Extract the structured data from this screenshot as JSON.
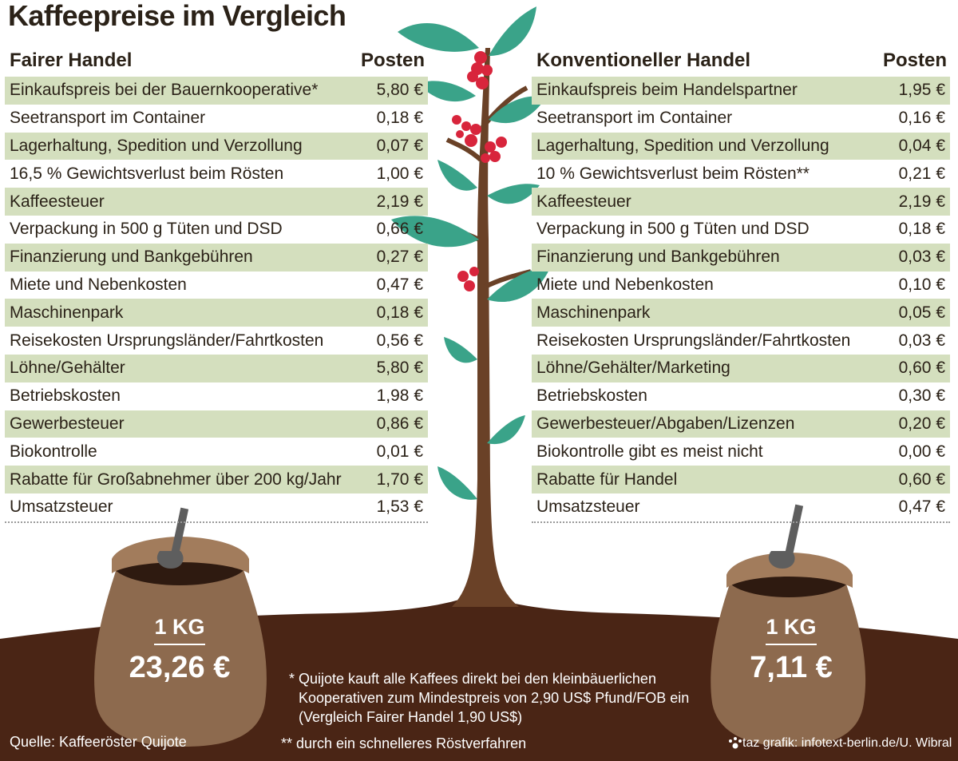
{
  "title": "Kaffeepreise im Vergleich",
  "colors": {
    "row_shade": "#d4dfbe",
    "soil": "#4a2515",
    "sack": "#8d6a4e",
    "leaf": "#3aa389",
    "berry": "#d8253c",
    "text": "#2b2218"
  },
  "chart_data": {
    "type": "table",
    "tables": [
      {
        "header": "Fairer Handel",
        "value_header": "Posten",
        "rows": [
          {
            "label": "Einkaufspreis bei der Bauernkooperative*",
            "value": "5,80 €"
          },
          {
            "label": "Seetransport im Container",
            "value": "0,18 €"
          },
          {
            "label": "Lagerhaltung, Spedition und Verzollung",
            "value": "0,07 €"
          },
          {
            "label": "16,5 % Gewichtsverlust beim Rösten",
            "value": "1,00 €"
          },
          {
            "label": "Kaffeesteuer",
            "value": "2,19 €"
          },
          {
            "label": "Verpackung in 500 g Tüten und DSD",
            "value": "0,66 €"
          },
          {
            "label": "Finanzierung und Bankgebühren",
            "value": "0,27 €"
          },
          {
            "label": "Miete und Nebenkosten",
            "value": "0,47 €"
          },
          {
            "label": "Maschinenpark",
            "value": "0,18 €"
          },
          {
            "label": "Reisekosten Ursprungsländer/Fahrtkosten",
            "value": "0,56 €"
          },
          {
            "label": "Löhne/Gehälter",
            "value": "5,80 €"
          },
          {
            "label": "Betriebskosten",
            "value": "1,98 €"
          },
          {
            "label": "Gewerbesteuer",
            "value": "0,86 €"
          },
          {
            "label": "Biokontrolle",
            "value": "0,01 €"
          },
          {
            "label": "Rabatte für Großabnehmer über 200 kg/Jahr",
            "value": "1,70 €"
          },
          {
            "label": "Umsatzsteuer",
            "value": "1,53 €"
          }
        ],
        "total_unit": "1 KG",
        "total": "23,26 €"
      },
      {
        "header": "Konventioneller Handel",
        "value_header": "Posten",
        "rows": [
          {
            "label": "Einkaufspreis beim Handelspartner",
            "value": "1,95 €"
          },
          {
            "label": "Seetransport im Container",
            "value": "0,16 €"
          },
          {
            "label": "Lagerhaltung, Spedition und Verzollung",
            "value": "0,04 €"
          },
          {
            "label": "10 % Gewichtsverlust beim Rösten**",
            "value": "0,21 €"
          },
          {
            "label": "Kaffeesteuer",
            "value": "2,19 €"
          },
          {
            "label": "Verpackung in 500 g Tüten und DSD",
            "value": "0,18 €"
          },
          {
            "label": "Finanzierung und Bankgebühren",
            "value": "0,03 €"
          },
          {
            "label": "Miete und Nebenkosten",
            "value": "0,10 €"
          },
          {
            "label": "Maschinenpark",
            "value": "0,05 €"
          },
          {
            "label": "Reisekosten Ursprungsländer/Fahrtkosten",
            "value": "0,03 €"
          },
          {
            "label": "Löhne/Gehälter/Marketing",
            "value": "0,60 €"
          },
          {
            "label": "Betriebskosten",
            "value": "0,30 €"
          },
          {
            "label": "Gewerbesteuer/Abgaben/Lizenzen",
            "value": "0,20 €"
          },
          {
            "label": "Biokontrolle gibt es meist nicht",
            "value": "0,00 €"
          },
          {
            "label": "Rabatte für Handel",
            "value": "0,60 €"
          },
          {
            "label": "Umsatzsteuer",
            "value": "0,47 €"
          }
        ],
        "total_unit": "1 KG",
        "total": "7,11 €"
      }
    ]
  },
  "footnotes": {
    "star_lines": [
      "* Quijote kauft alle Kaffees direkt bei den kleinbäuerlichen",
      "Kooperativen zum Mindestpreis von 2,90 US$ Pfund/FOB ein",
      "(Vergleich Fairer Handel 1,90 US$)"
    ],
    "double_star": "** durch ein schnelleres Röstverfahren"
  },
  "source": "Quelle: Kaffeeröster Quijote",
  "credit": "taz grafik: infotext-berlin.de/U. Wibral"
}
